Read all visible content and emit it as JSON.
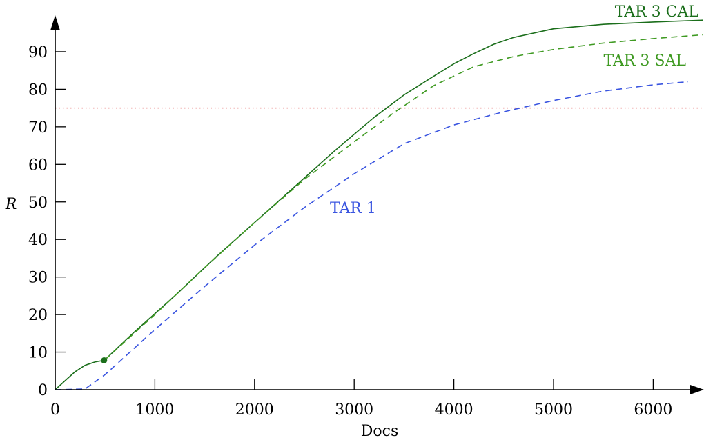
{
  "chart_data": {
    "type": "line",
    "xlabel": "Docs",
    "ylabel": "R",
    "xlim": [
      0,
      6500
    ],
    "ylim": [
      0,
      100
    ],
    "xticks": [
      0,
      1000,
      2000,
      3000,
      4000,
      5000,
      6000
    ],
    "yticks": [
      0,
      10,
      20,
      30,
      40,
      50,
      60,
      70,
      80,
      90
    ],
    "grid": false,
    "reference_line": {
      "y": 75,
      "color": "#e57373",
      "style": "dotted"
    },
    "marker": {
      "series": "TAR 3 CAL",
      "x": 490,
      "y": 7.8,
      "color": "#1b6e1b"
    },
    "series": [
      {
        "name": "TAR 3 CAL",
        "color": "#1b6e1b",
        "style": "solid",
        "x": [
          0,
          100,
          200,
          300,
          400,
          490,
          500,
          800,
          1200,
          1600,
          2000,
          2400,
          2800,
          3200,
          3500,
          3800,
          4000,
          4200,
          4400,
          4600,
          5000,
          5500,
          6000,
          6500
        ],
        "y": [
          0,
          2.4,
          4.8,
          6.5,
          7.4,
          7.8,
          8,
          15.5,
          25,
          35,
          44.5,
          54,
          63.5,
          72.5,
          78.5,
          83.5,
          86.8,
          89.5,
          92,
          93.8,
          96.1,
          97.3,
          97.9,
          98.4
        ]
      },
      {
        "name": "TAR 3 SAL",
        "color": "#3f9a22",
        "style": "dashed",
        "x": [
          500,
          1000,
          1500,
          2000,
          2500,
          3000,
          3400,
          3800,
          4200,
          4600,
          5000,
          5500,
          6000,
          6500
        ],
        "y": [
          8,
          20,
          32.5,
          44.5,
          56,
          66,
          73.8,
          81,
          86,
          88.7,
          90.6,
          92.3,
          93.5,
          94.5
        ]
      },
      {
        "name": "TAR 1",
        "color": "#3a55e0",
        "style": "dashed",
        "x": [
          0,
          300,
          500,
          1000,
          1500,
          2000,
          2500,
          3000,
          3500,
          4000,
          4500,
          5000,
          5500,
          6000,
          6350
        ],
        "y": [
          0,
          0.2,
          4,
          16,
          27.5,
          38.5,
          48.5,
          57.5,
          65.5,
          70.5,
          74,
          77,
          79.5,
          81.2,
          82
        ]
      }
    ]
  }
}
